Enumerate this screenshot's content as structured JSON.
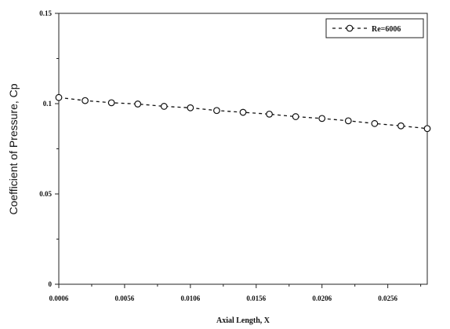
{
  "chart_data": {
    "type": "line",
    "xlabel": "Axial Length, X",
    "ylabel": "Coefficient of Pressure, Cp",
    "xlim": [
      0.0006,
      0.0286
    ],
    "ylim": [
      0,
      0.15
    ],
    "x_ticks": [
      "0.0006",
      "0.0056",
      "0.0106",
      "0.0156",
      "0.0206",
      "0.0256"
    ],
    "y_ticks": [
      "0",
      "0.05",
      "0.1",
      "0.15"
    ],
    "x_tick_values": [
      0.0006,
      0.0056,
      0.0106,
      0.0156,
      0.0206,
      0.0256
    ],
    "y_tick_values": [
      0,
      0.05,
      0.1,
      0.15
    ],
    "grid": false,
    "legend_position": "top-right",
    "series": [
      {
        "name": "Re=6006",
        "color": "#111111",
        "marker": "open-circle",
        "line_style": "dashed",
        "x": [
          0.0006,
          0.0026,
          0.0046,
          0.0066,
          0.0086,
          0.0106,
          0.0126,
          0.0146,
          0.0166,
          0.0186,
          0.0206,
          0.0226,
          0.0246,
          0.0266,
          0.0286
        ],
        "y": [
          0.1034,
          0.1017,
          0.1005,
          0.0998,
          0.0985,
          0.0977,
          0.0962,
          0.0952,
          0.0942,
          0.0928,
          0.0918,
          0.0905,
          0.089,
          0.0877,
          0.0862
        ]
      }
    ]
  }
}
